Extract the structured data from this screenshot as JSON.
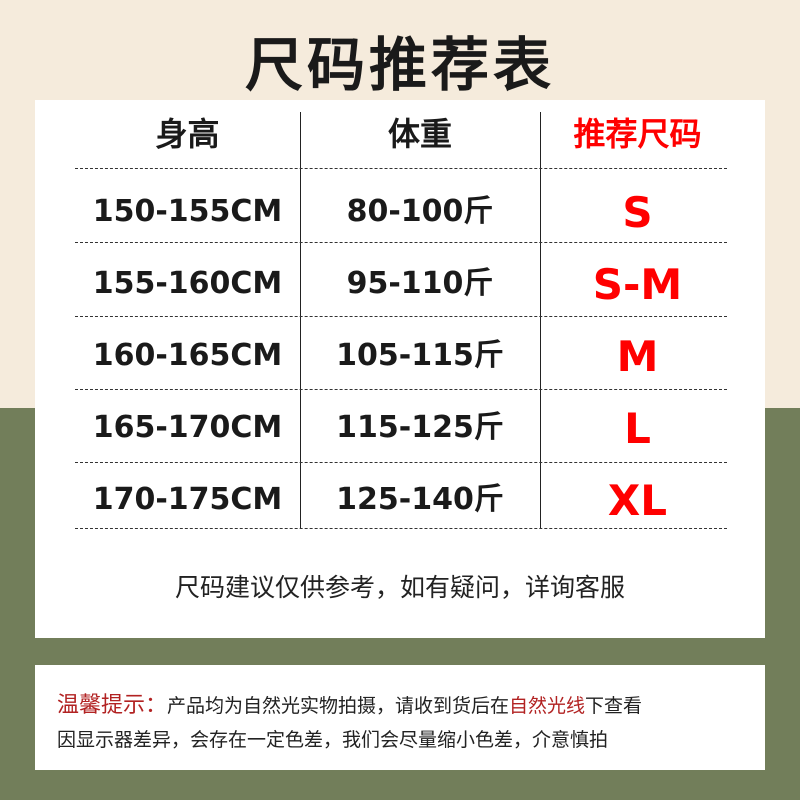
{
  "title": "尺码推荐表",
  "table": {
    "headers": [
      "身高",
      "体重",
      "推荐尺码"
    ],
    "rows": [
      {
        "height": "150-155CM",
        "weight": "80-100斤",
        "size": "S"
      },
      {
        "height": "155-160CM",
        "weight": "95-110斤",
        "size": "S-M"
      },
      {
        "height": "160-165CM",
        "weight": "105-115斤",
        "size": "M"
      },
      {
        "height": "165-170CM",
        "weight": "115-125斤",
        "size": "L"
      },
      {
        "height": "170-175CM",
        "weight": "125-140斤",
        "size": "XL"
      }
    ]
  },
  "note": "尺码建议仅供参考，如有疑问，详询客服",
  "tip": {
    "label": "温馨提示：",
    "line1_a": "产品均为自然光实物拍摄，请收到货后在",
    "line1_highlight": "自然光线",
    "line1_b": "下查看",
    "line2": "因显示器差异，会存在一定色差，我们会尽量缩小色差，介意慎拍"
  },
  "colors": {
    "accent": "#ff0000",
    "tip_red": "#b22222",
    "top_bg": "#f5ebdc",
    "bottom_bg": "#727e5a"
  }
}
